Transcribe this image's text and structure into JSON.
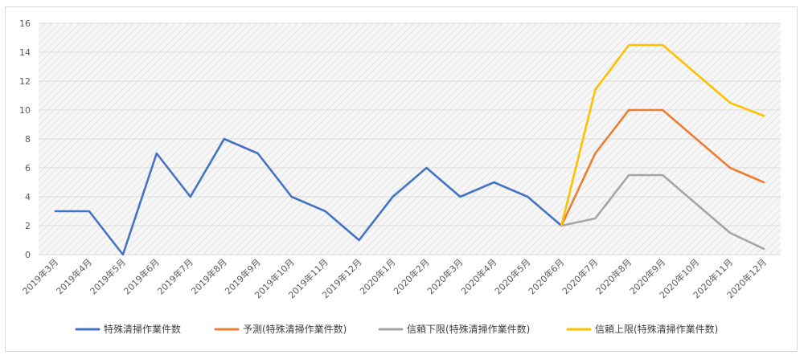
{
  "chart_data": {
    "type": "line",
    "title": "",
    "xlabel": "",
    "ylabel": "",
    "ylim": [
      0,
      16
    ],
    "yticks": [
      0,
      2,
      4,
      6,
      8,
      10,
      12,
      14,
      16
    ],
    "grid": true,
    "legend_position": "bottom",
    "categories": [
      "2019年3月",
      "2019年4月",
      "2019年5月",
      "2019年6月",
      "2019年7月",
      "2019年8月",
      "2019年9月",
      "2019年10月",
      "2019年11月",
      "2019年12月",
      "2020年1月",
      "2020年2月",
      "2020年3月",
      "2020年4月",
      "2020年5月",
      "2020年6月",
      "2020年7月",
      "2020年8月",
      "2020年9月",
      "2020年10月",
      "2020年11月",
      "2020年12月"
    ],
    "series": [
      {
        "name": "特殊清掃作業件数",
        "color": "#4472c4",
        "values": [
          3,
          3,
          0,
          7,
          4,
          8,
          7,
          4,
          3,
          1,
          4,
          6,
          4,
          5,
          4,
          2,
          null,
          null,
          null,
          null,
          null,
          null
        ]
      },
      {
        "name": "予測(特殊清掃作業件数)",
        "color": "#ed7d31",
        "values": [
          null,
          null,
          null,
          null,
          null,
          null,
          null,
          null,
          null,
          null,
          null,
          null,
          null,
          null,
          null,
          2,
          7,
          10,
          10,
          8,
          6,
          5
        ]
      },
      {
        "name": "信頼下限(特殊清掃作業件数)",
        "color": "#a5a5a5",
        "values": [
          null,
          null,
          null,
          null,
          null,
          null,
          null,
          null,
          null,
          null,
          null,
          null,
          null,
          null,
          null,
          2,
          2.5,
          5.5,
          5.5,
          3.5,
          1.5,
          0.4
        ]
      },
      {
        "name": "信頼上限(特殊清掃作業件数)",
        "color": "#ffc000",
        "values": [
          null,
          null,
          null,
          null,
          null,
          null,
          null,
          null,
          null,
          null,
          null,
          null,
          null,
          null,
          null,
          2,
          11.4,
          14.5,
          14.5,
          12.5,
          10.5,
          9.6
        ]
      }
    ],
    "plot_background": "#f2f2f2"
  }
}
